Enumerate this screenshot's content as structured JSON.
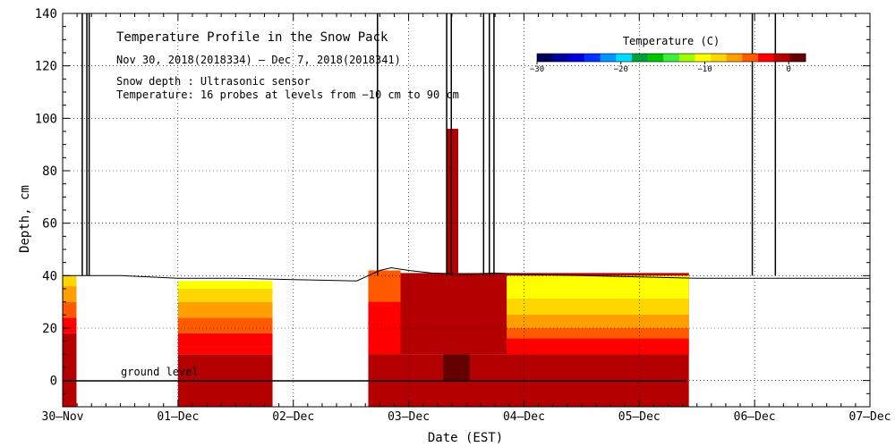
{
  "chart_data": {
    "type": "heatmap",
    "title": "Temperature Profile in the Snow Pack",
    "subtitle_period": "Nov 30, 2018(2018334) – Dec  7, 2018(2018341)",
    "note_depth": "Snow depth : Ultrasonic sensor",
    "note_temperature": "Temperature: 16 probes at levels from −10 cm to 90 cm",
    "xlabel": "Date (EST)",
    "ylabel": "Depth, cm",
    "x_tick_labels": [
      "30–Nov",
      "01–Dec",
      "02–Dec",
      "03–Dec",
      "04–Dec",
      "05–Dec",
      "06–Dec",
      "07–Dec"
    ],
    "xlim_days": [
      0,
      7
    ],
    "ylim": [
      -10,
      140
    ],
    "y_ticks": [
      0,
      20,
      40,
      60,
      80,
      100,
      120,
      140
    ],
    "ground_level_label": "ground level",
    "colorbar": {
      "title": "Temperature (C)",
      "range": [
        -30,
        2
      ],
      "tick_values": [
        -30,
        -20,
        -10,
        0
      ],
      "tick_labels": [
        "−30",
        "−20",
        "−10",
        "0"
      ],
      "colors": [
        "#00005a",
        "#0000a0",
        "#0000dc",
        "#0032ff",
        "#0096ff",
        "#00dcff",
        "#00a03c",
        "#00c800",
        "#3cf03c",
        "#a0ff00",
        "#ffff00",
        "#ffd700",
        "#ffa000",
        "#ff5a00",
        "#ff0000",
        "#b40000",
        "#640000"
      ]
    },
    "snow_depth": [
      [
        0.0,
        40
      ],
      [
        0.18,
        40
      ],
      [
        0.5,
        40
      ],
      [
        1.0,
        39
      ],
      [
        1.5,
        39
      ],
      [
        2.0,
        38.5
      ],
      [
        2.55,
        38
      ],
      [
        2.65,
        40
      ],
      [
        2.75,
        42
      ],
      [
        2.85,
        43
      ],
      [
        3.0,
        42
      ],
      [
        3.2,
        41
      ],
      [
        3.5,
        40.5
      ],
      [
        3.75,
        41
      ],
      [
        4.0,
        40.5
      ],
      [
        4.5,
        40
      ],
      [
        5.0,
        39.5
      ],
      [
        5.5,
        39
      ],
      [
        6.0,
        39
      ],
      [
        7.0,
        39
      ]
    ],
    "snow_depth_spikes_days": [
      0.17,
      0.21,
      0.23,
      2.73,
      3.33,
      3.37,
      3.65,
      3.7,
      3.74,
      5.98,
      6.18
    ],
    "temperature_blocks": [
      {
        "start_day": 0.0,
        "end_day": 0.12,
        "bands": [
          {
            "from_cm": -10,
            "to_cm": 0,
            "temp_c": -0.5
          },
          {
            "from_cm": 0,
            "to_cm": 18,
            "temp_c": -1.0
          },
          {
            "from_cm": 18,
            "to_cm": 24,
            "temp_c": -2.0
          },
          {
            "from_cm": 24,
            "to_cm": 30,
            "temp_c": -4.0
          },
          {
            "from_cm": 30,
            "to_cm": 36,
            "temp_c": -7.0
          },
          {
            "from_cm": 36,
            "to_cm": 40,
            "temp_c": -9.0
          }
        ]
      },
      {
        "start_day": 1.0,
        "end_day": 1.82,
        "bands": [
          {
            "from_cm": -10,
            "to_cm": 0,
            "temp_c": -0.5
          },
          {
            "from_cm": 0,
            "to_cm": 10,
            "temp_c": -1.0
          },
          {
            "from_cm": 10,
            "to_cm": 13,
            "temp_c": -2.0
          },
          {
            "from_cm": 13,
            "to_cm": 18,
            "temp_c": -3.0
          },
          {
            "from_cm": 18,
            "to_cm": 24,
            "temp_c": -4.0
          },
          {
            "from_cm": 24,
            "to_cm": 30,
            "temp_c": -6.0
          },
          {
            "from_cm": 30,
            "to_cm": 35,
            "temp_c": -8.0
          },
          {
            "from_cm": 35,
            "to_cm": 38,
            "temp_c": -10.0
          }
        ]
      },
      {
        "start_day": 2.65,
        "end_day": 5.43,
        "bands": [
          {
            "from_cm": -10,
            "to_cm": 0,
            "temp_c": -0.5
          },
          {
            "from_cm": 0,
            "to_cm": 10,
            "temp_c": -1.0
          },
          {
            "from_cm": 10,
            "to_cm": 41,
            "temp_c": -1.0
          }
        ]
      },
      {
        "start_day": 2.65,
        "end_day": 2.93,
        "bands": [
          {
            "from_cm": 10,
            "to_cm": 18,
            "temp_c": -2.0
          },
          {
            "from_cm": 18,
            "to_cm": 30,
            "temp_c": -3.0
          },
          {
            "from_cm": 30,
            "to_cm": 42,
            "temp_c": -4.0
          }
        ]
      },
      {
        "start_day": 3.85,
        "end_day": 5.43,
        "bands": [
          {
            "from_cm": 10,
            "to_cm": 13,
            "temp_c": -2.0
          },
          {
            "from_cm": 13,
            "to_cm": 16,
            "temp_c": -3.0
          },
          {
            "from_cm": 16,
            "to_cm": 20,
            "temp_c": -4.0
          },
          {
            "from_cm": 20,
            "to_cm": 25,
            "temp_c": -6.0
          },
          {
            "from_cm": 25,
            "to_cm": 31,
            "temp_c": -8.0
          },
          {
            "from_cm": 31,
            "to_cm": 40,
            "temp_c": -10.0
          }
        ]
      },
      {
        "start_day": 3.33,
        "end_day": 3.43,
        "bands": [
          {
            "from_cm": 40,
            "to_cm": 96,
            "temp_c": -1.0
          }
        ]
      },
      {
        "start_day": 3.3,
        "end_day": 3.53,
        "bands": [
          {
            "from_cm": 0,
            "to_cm": 10,
            "temp_c": 1.5
          }
        ]
      }
    ]
  }
}
